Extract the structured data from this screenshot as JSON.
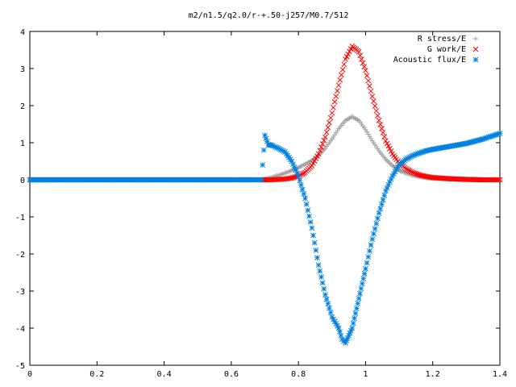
{
  "chart_data": {
    "type": "scatter",
    "title": "m2/n1.5/q2.0/r-+.50-j257/M0.7/512",
    "xlabel": "",
    "ylabel": "",
    "xlim": [
      0,
      1.4
    ],
    "ylim": [
      -5,
      4
    ],
    "x_ticks": [
      "0",
      "0.2",
      "0.4",
      "0.6",
      "0.8",
      "1",
      "1.2",
      "1.4"
    ],
    "y_ticks": [
      "4",
      "3",
      "2",
      "1",
      "0",
      "-1",
      "-2",
      "-3",
      "-4",
      "-5"
    ],
    "grid": false,
    "legend_position": "top-right",
    "series": [
      {
        "name": "R stress/E",
        "marker": "plus",
        "color": "#a0a0a0",
        "x": [
          0.0,
          0.1,
          0.2,
          0.3,
          0.4,
          0.5,
          0.6,
          0.69,
          0.7,
          0.72,
          0.74,
          0.76,
          0.78,
          0.8,
          0.82,
          0.84,
          0.86,
          0.88,
          0.9,
          0.92,
          0.94,
          0.96,
          0.98,
          1.0,
          1.02,
          1.04,
          1.06,
          1.08,
          1.1,
          1.12,
          1.14,
          1.16,
          1.18,
          1.2,
          1.25,
          1.3,
          1.35,
          1.4
        ],
        "y": [
          0.0,
          0.0,
          0.0,
          0.0,
          0.0,
          0.0,
          0.0,
          0.0,
          0.02,
          0.06,
          0.12,
          0.18,
          0.25,
          0.33,
          0.42,
          0.52,
          0.66,
          0.85,
          1.1,
          1.38,
          1.6,
          1.7,
          1.6,
          1.35,
          1.05,
          0.78,
          0.55,
          0.38,
          0.26,
          0.18,
          0.12,
          0.08,
          0.06,
          0.04,
          0.02,
          0.01,
          0.0,
          0.0
        ]
      },
      {
        "name": "G work/E",
        "marker": "cross",
        "color": "#ff0000",
        "x": [
          0.0,
          0.1,
          0.2,
          0.3,
          0.4,
          0.5,
          0.6,
          0.69,
          0.7,
          0.72,
          0.74,
          0.76,
          0.78,
          0.8,
          0.82,
          0.84,
          0.86,
          0.88,
          0.9,
          0.92,
          0.94,
          0.96,
          0.98,
          1.0,
          1.02,
          1.04,
          1.06,
          1.08,
          1.1,
          1.12,
          1.14,
          1.16,
          1.18,
          1.2,
          1.25,
          1.3,
          1.35,
          1.4
        ],
        "y": [
          0.0,
          0.0,
          0.0,
          0.0,
          0.0,
          0.0,
          0.0,
          0.0,
          0.0,
          0.0,
          0.01,
          0.02,
          0.05,
          0.1,
          0.2,
          0.38,
          0.7,
          1.15,
          1.8,
          2.55,
          3.25,
          3.6,
          3.45,
          2.95,
          2.25,
          1.6,
          1.05,
          0.7,
          0.45,
          0.3,
          0.2,
          0.13,
          0.09,
          0.06,
          0.03,
          0.01,
          0.0,
          0.0
        ]
      },
      {
        "name": "Acoustic flux/E",
        "marker": "star",
        "color": "#0080e0",
        "x": [
          0.0,
          0.1,
          0.2,
          0.3,
          0.4,
          0.5,
          0.6,
          0.69,
          0.7,
          0.71,
          0.72,
          0.74,
          0.76,
          0.78,
          0.8,
          0.82,
          0.84,
          0.86,
          0.88,
          0.9,
          0.92,
          0.93,
          0.94,
          0.95,
          0.96,
          0.97,
          0.98,
          0.99,
          1.0,
          1.02,
          1.04,
          1.06,
          1.08,
          1.1,
          1.12,
          1.14,
          1.16,
          1.18,
          1.2,
          1.25,
          1.3,
          1.35,
          1.4
        ],
        "y": [
          0.0,
          0.0,
          0.0,
          0.0,
          0.0,
          0.0,
          0.0,
          0.0,
          1.2,
          0.95,
          0.93,
          0.85,
          0.75,
          0.5,
          0.1,
          -0.5,
          -1.3,
          -2.3,
          -3.1,
          -3.7,
          -4.0,
          -4.3,
          -4.4,
          -4.2,
          -4.0,
          -3.6,
          -3.2,
          -2.8,
          -2.4,
          -1.6,
          -0.9,
          -0.3,
          0.1,
          0.4,
          0.55,
          0.65,
          0.72,
          0.78,
          0.82,
          0.9,
          0.98,
          1.1,
          1.25
        ]
      }
    ]
  }
}
